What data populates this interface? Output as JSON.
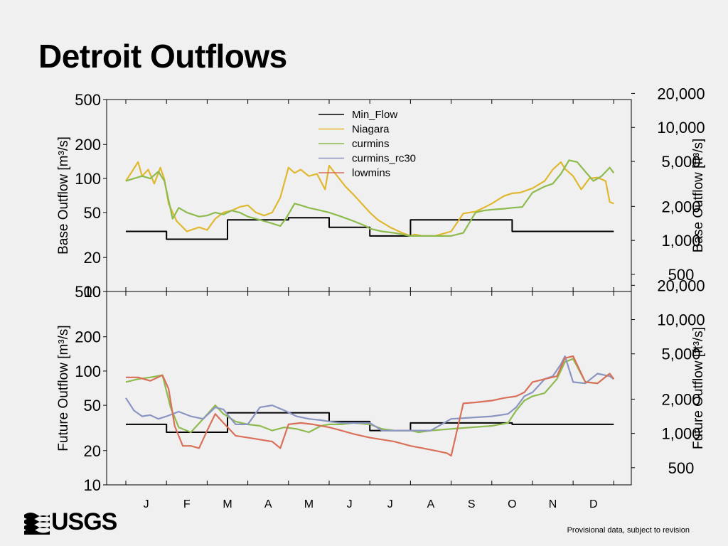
{
  "slide": {
    "title": "Detroit Outflows",
    "footnote": "Provisional data, subject to revision",
    "logo_text": "USGS",
    "logo_icon": "usgs-wave-icon"
  },
  "chart_data": [
    {
      "type": "line",
      "panel": "top",
      "ylabel": "Base Outflow [m³/s]",
      "ylabel_right": "Base Outflow [ft³/s]",
      "yscale": "log",
      "ylim": [
        10,
        500
      ],
      "yticks": [
        10,
        20,
        50,
        100,
        200,
        500
      ],
      "ytick_labels": [
        "10",
        "20",
        "50",
        "100",
        "200",
        "500"
      ],
      "yticks_right": [
        500,
        1000,
        2000,
        5000,
        10000,
        20000
      ],
      "ytick_labels_right": [
        "500",
        "1,000",
        "2,000",
        "5,000",
        "10,000",
        "20,000"
      ],
      "xlim": [
        1,
        13
      ],
      "legend": {
        "placement": "top-center"
      },
      "series": [
        {
          "name": "Min_Flow",
          "color": "#000000",
          "step": true,
          "x": [
            1,
            2,
            2,
            3.5,
            3.5,
            5,
            5,
            6,
            6,
            7,
            7,
            8,
            8,
            10.5,
            10.5,
            13
          ],
          "y": [
            34,
            34,
            29,
            29,
            43,
            43,
            45,
            45,
            37,
            37,
            31,
            31,
            43,
            43,
            34,
            34
          ]
        },
        {
          "name": "Niagara",
          "color": "#e0b830",
          "x": [
            1,
            1.15,
            1.3,
            1.4,
            1.55,
            1.7,
            1.85,
            1.95,
            2.05,
            2.25,
            2.5,
            2.8,
            3,
            3.2,
            3.4,
            3.6,
            3.8,
            4,
            4.2,
            4.4,
            4.6,
            4.8,
            5,
            5.15,
            5.3,
            5.5,
            5.7,
            5.9,
            6,
            6.2,
            6.4,
            6.6,
            6.8,
            7,
            7.2,
            7.5,
            7.8,
            8,
            8.1,
            8.3,
            8.6,
            9,
            9.3,
            9.6,
            9.8,
            10,
            10.3,
            10.5,
            10.7,
            11,
            11.3,
            11.5,
            11.7,
            11.8,
            12,
            12.2,
            12.4,
            12.6,
            12.8,
            12.9,
            13
          ],
          "y": [
            95,
            115,
            140,
            105,
            120,
            90,
            125,
            98,
            60,
            42,
            34,
            37,
            35,
            44,
            50,
            52,
            56,
            58,
            50,
            47,
            50,
            68,
            125,
            112,
            120,
            105,
            110,
            80,
            130,
            105,
            85,
            72,
            60,
            50,
            43,
            37,
            33,
            31,
            32,
            31,
            31,
            34,
            49,
            51,
            55,
            60,
            70,
            74,
            75,
            82,
            95,
            120,
            140,
            122,
            105,
            80,
            100,
            102,
            95,
            62,
            60
          ]
        },
        {
          "name": "curmins",
          "color": "#8dbb4e",
          "x": [
            1,
            1.2,
            1.4,
            1.6,
            1.8,
            1.95,
            2.15,
            2.3,
            2.5,
            2.8,
            3,
            3.2,
            3.4,
            3.6,
            3.8,
            4,
            4.2,
            4.4,
            4.6,
            4.8,
            4.95,
            5.15,
            5.3,
            5.5,
            5.8,
            6,
            6.3,
            6.6,
            6.9,
            7,
            7.3,
            7.6,
            8,
            8.2,
            8.5,
            9,
            9.3,
            9.6,
            9.8,
            10,
            10.3,
            10.5,
            10.75,
            11,
            11.3,
            11.5,
            11.7,
            11.9,
            12.1,
            12.3,
            12.5,
            12.7,
            12.9,
            13
          ],
          "y": [
            95,
            100,
            105,
            100,
            115,
            95,
            44,
            55,
            50,
            46,
            47,
            50,
            48,
            52,
            50,
            46,
            44,
            42,
            40,
            38,
            45,
            60,
            58,
            55,
            52,
            50,
            46,
            42,
            38,
            36,
            34,
            33,
            31,
            31,
            31,
            31,
            33,
            50,
            52,
            53,
            54,
            55,
            56,
            75,
            85,
            90,
            110,
            145,
            140,
            115,
            95,
            105,
            125,
            112
          ]
        }
      ]
    },
    {
      "type": "line",
      "panel": "bottom",
      "ylabel": "Future Outflow [m³/s]",
      "ylabel_right": "Future Outflow [ft³/s]",
      "yscale": "log",
      "ylim": [
        10,
        500
      ],
      "yticks": [
        10,
        20,
        50,
        100,
        200,
        500
      ],
      "ytick_labels": [
        "10",
        "20",
        "50",
        "100",
        "200",
        "500"
      ],
      "yticks_right": [
        500,
        1000,
        2000,
        5000,
        10000,
        20000
      ],
      "ytick_labels_right": [
        "500",
        "1,000",
        "2,000",
        "5,000",
        "10,000",
        "20,000"
      ],
      "xlim": [
        1,
        13
      ],
      "categories": [
        "J",
        "F",
        "M",
        "A",
        "M",
        "J",
        "J",
        "A",
        "S",
        "O",
        "N",
        "D"
      ],
      "series": [
        {
          "name": "Min_Flow",
          "color": "#000000",
          "step": true,
          "x": [
            1,
            2,
            2,
            3.5,
            3.5,
            5,
            5,
            6,
            6,
            7,
            7,
            8,
            8,
            10.5,
            10.5,
            13
          ],
          "y": [
            34,
            34,
            29,
            29,
            43,
            43,
            43,
            43,
            36,
            36,
            30,
            30,
            35,
            35,
            34,
            34
          ]
        },
        {
          "name": "curmins",
          "color": "#8dbb4e",
          "x": [
            1,
            1.3,
            1.6,
            1.9,
            2.1,
            2.3,
            2.6,
            2.9,
            3.2,
            3.4,
            3.7,
            4,
            4.3,
            4.6,
            4.9,
            5.2,
            5.5,
            5.8,
            6,
            6.3,
            6.6,
            7,
            7.3,
            7.6,
            8,
            8.2,
            8.5,
            9,
            9.5,
            10,
            10.4,
            10.6,
            10.8,
            11,
            11.3,
            11.6,
            11.8,
            12,
            12.3,
            12.6,
            12.9,
            13
          ],
          "y": [
            80,
            85,
            88,
            92,
            48,
            32,
            29,
            38,
            50,
            42,
            36,
            34,
            33,
            30,
            32,
            31,
            29,
            33,
            34,
            34,
            35,
            34,
            31,
            30,
            30,
            29,
            30,
            31,
            32,
            33,
            35,
            45,
            55,
            60,
            64,
            85,
            120,
            128,
            80,
            78,
            95,
            85
          ]
        },
        {
          "name": "curmins_rc30",
          "color": "#8b95c1",
          "x": [
            1,
            1.2,
            1.4,
            1.6,
            1.8,
            2,
            2.3,
            2.6,
            2.9,
            3.2,
            3.4,
            3.7,
            4,
            4.3,
            4.6,
            4.9,
            5.2,
            5.5,
            5.8,
            6,
            6.3,
            6.6,
            7,
            7.3,
            7.6,
            8,
            8.2,
            8.5,
            9,
            9.5,
            10,
            10.4,
            10.6,
            10.8,
            11,
            11.3,
            11.5,
            11.7,
            11.8,
            12,
            12.3,
            12.6,
            12.9,
            13
          ],
          "y": [
            58,
            45,
            40,
            41,
            38,
            40,
            44,
            40,
            38,
            48,
            46,
            34,
            34,
            48,
            50,
            45,
            40,
            38,
            37,
            36,
            35,
            35,
            35,
            30,
            30,
            30,
            30,
            30,
            38,
            39,
            40,
            42,
            48,
            60,
            65,
            85,
            90,
            115,
            135,
            80,
            78,
            95,
            90,
            85
          ]
        },
        {
          "name": "lowmins",
          "color": "#d9705a",
          "x": [
            1,
            1.3,
            1.6,
            1.9,
            2.05,
            2.2,
            2.4,
            2.6,
            2.8,
            3,
            3.2,
            3.4,
            3.7,
            4,
            4.3,
            4.6,
            4.8,
            5,
            5.3,
            5.6,
            6,
            6.3,
            6.6,
            7,
            7.3,
            7.6,
            8,
            8.3,
            8.6,
            8.9,
            9,
            9.3,
            9.6,
            10,
            10.3,
            10.6,
            10.8,
            11,
            11.3,
            11.6,
            11.8,
            12,
            12.3,
            12.6,
            12.9,
            13
          ],
          "y": [
            88,
            88,
            82,
            92,
            70,
            33,
            22,
            22,
            21,
            30,
            42,
            35,
            27,
            26,
            25,
            24,
            21,
            34,
            35,
            34,
            32,
            30,
            28,
            26,
            25,
            24,
            22,
            21,
            20,
            19,
            18,
            52,
            53,
            55,
            58,
            60,
            65,
            80,
            85,
            90,
            130,
            135,
            80,
            78,
            95,
            85
          ]
        }
      ],
      "legend_entries": [
        "Min_Flow",
        "Niagara",
        "curmins",
        "curmins_rc30",
        "lowmins"
      ],
      "legend_colors": [
        "#000000",
        "#e0b830",
        "#8dbb4e",
        "#8b95c1",
        "#d9705a"
      ]
    }
  ]
}
